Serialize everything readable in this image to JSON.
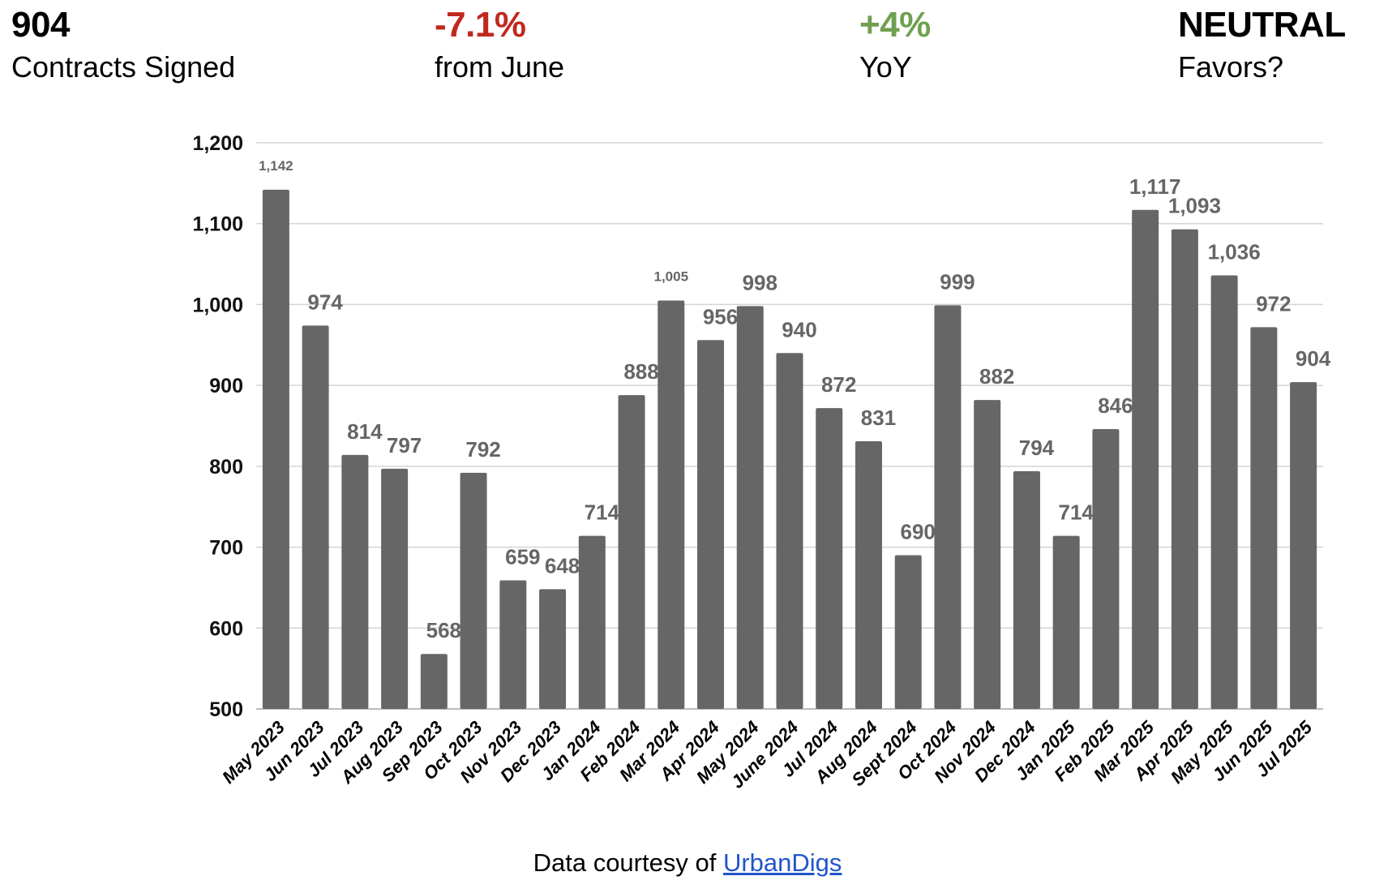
{
  "kpis": [
    {
      "value": "904",
      "label": "Contracts Signed",
      "color": "#000000"
    },
    {
      "value": "-7.1%",
      "label": "from June",
      "color": "#c0281f"
    },
    {
      "value": "+4%",
      "label": "YoY",
      "color": "#6fa050"
    },
    {
      "value": "NEUTRAL",
      "label": "Favors?",
      "color": "#000000"
    }
  ],
  "footer": {
    "text": "Data courtesy of ",
    "link": "UrbanDigs"
  },
  "chart_data": {
    "type": "bar",
    "title": "",
    "xlabel": "",
    "ylabel": "",
    "ylim": [
      500,
      1200
    ],
    "yticks": [
      500,
      600,
      700,
      800,
      900,
      1000,
      1100,
      1200
    ],
    "ytick_labels": [
      "500",
      "600",
      "700",
      "800",
      "900",
      "1,000",
      "1,100",
      "1,200"
    ],
    "grid": true,
    "bar_color": "#666666",
    "categories": [
      "May 2023",
      "Jun 2023",
      "Jul 2023",
      "Aug 2023",
      "Sep 2023",
      "Oct 2023",
      "Nov 2023",
      "Dec 2023",
      "Jan 2024",
      "Feb 2024",
      "Mar 2024",
      "Apr 2024",
      "May 2024",
      "June 2024",
      "Jul 2024",
      "Aug 2024",
      "Sept 2024",
      "Oct 2024",
      "Nov 2024",
      "Dec 2024",
      "Jan 2025",
      "Feb 2025",
      "Mar 2025",
      "Apr 2025",
      "May 2025",
      "Jun 2025",
      "Jul 2025"
    ],
    "values": [
      1142,
      974,
      814,
      797,
      568,
      792,
      659,
      648,
      714,
      888,
      1005,
      956,
      998,
      940,
      872,
      831,
      690,
      999,
      882,
      794,
      714,
      846,
      1117,
      1093,
      1036,
      972,
      904
    ],
    "data_labels": [
      "1,142",
      "974",
      "814",
      "797",
      "568",
      "792",
      "659",
      "648",
      "714",
      "888",
      "1,005",
      "956",
      "998",
      "940",
      "872",
      "831",
      "690",
      "999",
      "882",
      "794",
      "714",
      "846",
      "1,117",
      "1,093",
      "1,036",
      "972",
      "904"
    ]
  }
}
